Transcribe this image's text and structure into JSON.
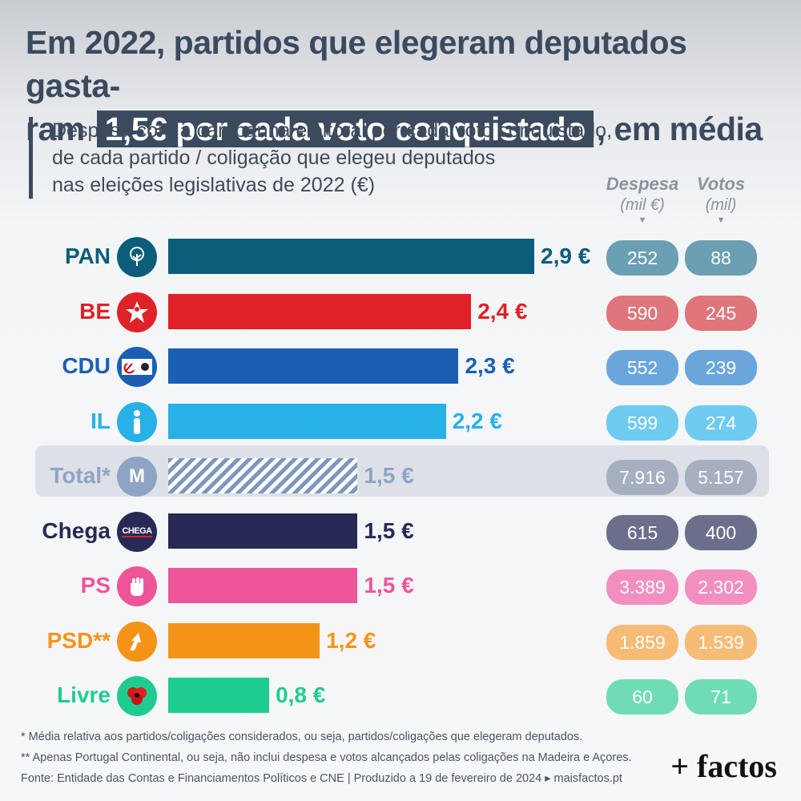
{
  "title": {
    "line1": "Em 2022, partidos que elegeram deputados gasta-",
    "line2_pre": "ram",
    "highlight": "1,5€ por cada voto conquistado",
    "line2_post": ", em média"
  },
  "subtitle": {
    "line1": "Despesa com a campanha eleitoral por cada voto conquistado,",
    "line2": "de cada partido / coligação que elegeu deputados",
    "line3": "nas eleições legislativas de 2022 (€)"
  },
  "columns": {
    "despesa": {
      "title": "Despesa",
      "unit": "(mil €)"
    },
    "votos": {
      "title": "Votos",
      "unit": "(mil)"
    }
  },
  "chart_data": {
    "type": "bar",
    "orientation": "horizontal",
    "categories": [
      "PAN",
      "BE",
      "CDU",
      "IL",
      "Total*",
      "Chega",
      "PS",
      "PSD**",
      "Livre"
    ],
    "values": [
      2.9,
      2.4,
      2.3,
      2.2,
      1.5,
      1.5,
      1.5,
      1.2,
      0.8
    ],
    "value_labels": [
      "2,9 €",
      "2,4 €",
      "2,3 €",
      "2,2 €",
      "1,5 €",
      "1,5 €",
      "1,5 €",
      "1,2 €",
      "0,8 €"
    ],
    "despesa": [
      "252",
      "590",
      "552",
      "599",
      "7.916",
      "615",
      "3.389",
      "1.859",
      "60"
    ],
    "votos": [
      "88",
      "245",
      "239",
      "274",
      "5.157",
      "400",
      "2.302",
      "1.539",
      "71"
    ],
    "colors": [
      "#0b5d7a",
      "#e02127",
      "#1b5fb3",
      "#27b1e6",
      "#8ea4c4",
      "#262a54",
      "#ee5599",
      "#f39419",
      "#1fcc90"
    ],
    "pill_colors": [
      "#6b9fb3",
      "#e0757b",
      "#6aa6dc",
      "#6fcbf0",
      "#a5afbf",
      "#6c6f8c",
      "#f28fc0",
      "#f6bb74",
      "#6fdcb5"
    ],
    "logos": [
      "tree-icon",
      "star-person-icon",
      "hammer-sickle-icon",
      "info-i-icon",
      "m-logo-icon",
      "chega-logo-icon",
      "fist-rose-icon",
      "arrow-logo-icon",
      "poppy-icon"
    ],
    "logo_texts": [
      "",
      "",
      "",
      "",
      "M",
      "CHEGA",
      "",
      "",
      ""
    ],
    "xlim": [
      0,
      3.0
    ]
  },
  "footnotes": {
    "f1": "* Média relativa aos partidos/coligações considerados, ou seja, partidos/coligações que elegeram deputados.",
    "f2": "** Apenas Portugal Continental, ou seja, não inclui despesa e votos alcançados pelas coligações na Madeira e Açores.",
    "f3": "Fonte: Entidade das Contas e Financiamentos Políticos e CNE  |  Produzido a 19 de fevereiro de 2024 ▸ maisfactos.pt"
  },
  "brand": "+ factos"
}
